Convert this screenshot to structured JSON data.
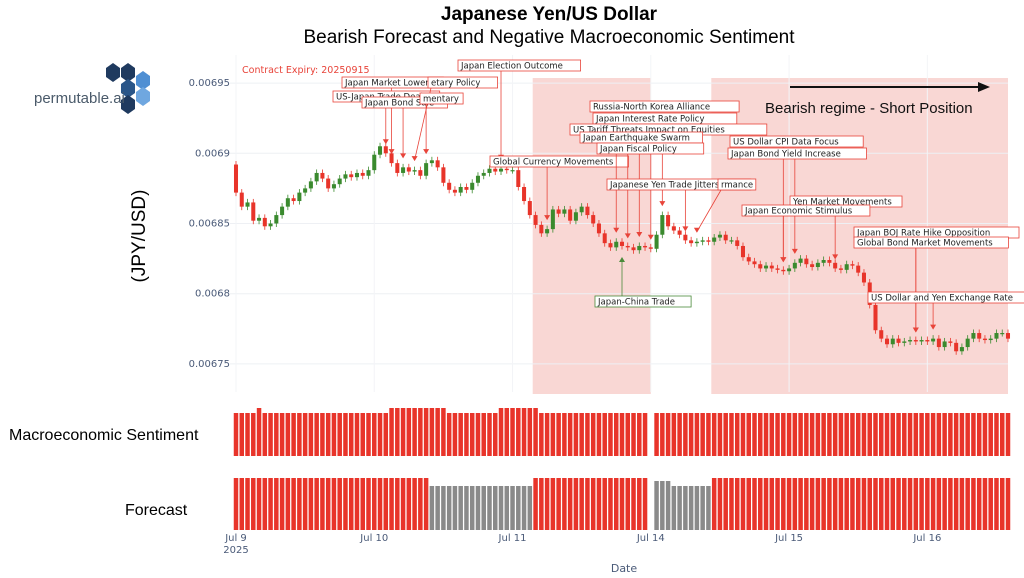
{
  "title": "Japanese Yen/US Dollar",
  "subtitle": "Bearish Forecast and Negative Macroeconomic Sentiment",
  "logo": {
    "text": "permutable.ai"
  },
  "panels": {
    "sentiment_label": "Macroeconomic Sentiment",
    "forecast_label": "Forecast"
  },
  "regime_label": "Bearish regime - Short Position",
  "expiry_label": "Contract Expiry: 20250915",
  "colors": {
    "bull": "#3a8a2e",
    "bear": "#e8342a",
    "neutral": "#8a8a8a",
    "regime_fill": "#f4b6b0"
  },
  "chart_data": {
    "type": "candlestick",
    "title": "Japanese Yen/US Dollar",
    "subtitle": "Bearish Forecast and Negative Macroeconomic Sentiment",
    "xlabel": "Date",
    "ylabel": "(JPY/USD)",
    "ylim": [
      0.00673,
      0.00697
    ],
    "yticks": [
      {
        "value": 0.00675,
        "label": "0.00675"
      },
      {
        "value": 0.0068,
        "label": "0.0068"
      },
      {
        "value": 0.00685,
        "label": "0.00685"
      },
      {
        "value": 0.0069,
        "label": "0.0069"
      },
      {
        "value": 0.00695,
        "label": "0.00695"
      }
    ],
    "xticks": [
      {
        "index": 0,
        "label": "Jul 9",
        "sub": "2025"
      },
      {
        "index": 24,
        "label": "Jul 10",
        "sub": ""
      },
      {
        "index": 48,
        "label": "Jul 11",
        "sub": ""
      },
      {
        "index": 72,
        "label": "Jul 14",
        "sub": ""
      },
      {
        "index": 96,
        "label": "Jul 15",
        "sub": ""
      },
      {
        "index": 120,
        "label": "Jul 16",
        "sub": ""
      }
    ],
    "close": [
      0.006872,
      0.006862,
      0.006865,
      0.006852,
      0.006854,
      0.006848,
      0.00685,
      0.006856,
      0.006862,
      0.006868,
      0.006866,
      0.006872,
      0.006875,
      0.00688,
      0.006886,
      0.006882,
      0.006875,
      0.006878,
      0.006882,
      0.006885,
      0.006883,
      0.006886,
      0.006884,
      0.006888,
      0.006899,
      0.006905,
      0.0069,
      0.006893,
      0.006886,
      0.00689,
      0.006887,
      0.006888,
      0.006884,
      0.006893,
      0.006895,
      0.00689,
      0.006879,
      0.006874,
      0.006872,
      0.006876,
      0.006874,
      0.006879,
      0.006884,
      0.006886,
      0.006889,
      0.006887,
      0.006889,
      0.006888,
      0.006888,
      0.006876,
      0.006866,
      0.006856,
      0.006849,
      0.006843,
      0.006846,
      0.00686,
      0.006857,
      0.00686,
      0.006852,
      0.006858,
      0.006862,
      0.006856,
      0.00685,
      0.006843,
      0.006836,
      0.006833,
      0.006837,
      0.006834,
      0.006833,
      0.006831,
      0.006834,
      0.006833,
      0.006832,
      0.006842,
      0.006856,
      0.006848,
      0.006845,
      0.006842,
      0.006838,
      0.006836,
      0.006837,
      0.006838,
      0.006837,
      0.00684,
      0.006842,
      0.006838,
      0.006838,
      0.006834,
      0.006826,
      0.006823,
      0.006821,
      0.006818,
      0.00682,
      0.006818,
      0.006817,
      0.006816,
      0.006818,
      0.006822,
      0.006825,
      0.006821,
      0.006819,
      0.006822,
      0.006824,
      0.006822,
      0.006818,
      0.006817,
      0.006821,
      0.00682,
      0.006815,
      0.006808,
      0.006792,
      0.006774,
      0.006768,
      0.006764,
      0.006768,
      0.006765,
      0.006766,
      0.006767,
      0.006766,
      0.006767,
      0.006766,
      0.006768,
      0.006762,
      0.006766,
      0.006765,
      0.006759,
      0.006762,
      0.006768,
      0.006772,
      0.006768,
      0.006767,
      0.006768,
      0.006772,
      0.006772,
      0.006768
    ],
    "annotations": [
      {
        "text": "Japan Market Lower",
        "index": 27
      },
      {
        "text": "US-Japan Trade Deal",
        "index": 26
      },
      {
        "text": "Japan Bond Sale",
        "index": 29
      },
      {
        "text": "etary Policy",
        "index": 31
      },
      {
        "text": "mentary",
        "index": 33
      },
      {
        "text": "Japan Election Outcome",
        "index": 46
      },
      {
        "text": "Global Currency Movements",
        "index": 54
      },
      {
        "text": "Russia-North Korea Alliance",
        "index": 66
      },
      {
        "text": "Japan Interest Rate Policy",
        "index": 68
      },
      {
        "text": "US Tariff Threats Impact on Equities",
        "index": 70
      },
      {
        "text": "Japan Earthquake Swarm",
        "index": 72
      },
      {
        "text": "Japan Fiscal Policy",
        "index": 74
      },
      {
        "text": "Japanese Yen Trade Jitters",
        "index": 78
      },
      {
        "text": "rmance",
        "index": 80
      },
      {
        "text": "Japan-China Trade",
        "index": 67
      },
      {
        "text": "US Dollar CPI Data Focus",
        "index": 95
      },
      {
        "text": "Japan Bond Yield Increase",
        "index": 97
      },
      {
        "text": "Yen Market Movements",
        "index": 104
      },
      {
        "text": "Japan Economic Stimulus",
        "index": 95
      },
      {
        "text": "Japan BOJ Rate Hike Opposition",
        "index": 118
      },
      {
        "text": "Global Bond Market Movements",
        "index": 118
      },
      {
        "text": "US Dollar and Yen Exchange Rate",
        "index": 121
      }
    ],
    "regimes": [
      {
        "start": 52,
        "end": 72
      },
      {
        "start": 83,
        "end": 134
      }
    ],
    "sentiment": {
      "missing": [
        72
      ]
    },
    "forecast": {
      "neutral_ranges": [
        [
          34,
          52
        ],
        [
          73,
          83
        ]
      ],
      "missing": [
        72
      ]
    }
  }
}
